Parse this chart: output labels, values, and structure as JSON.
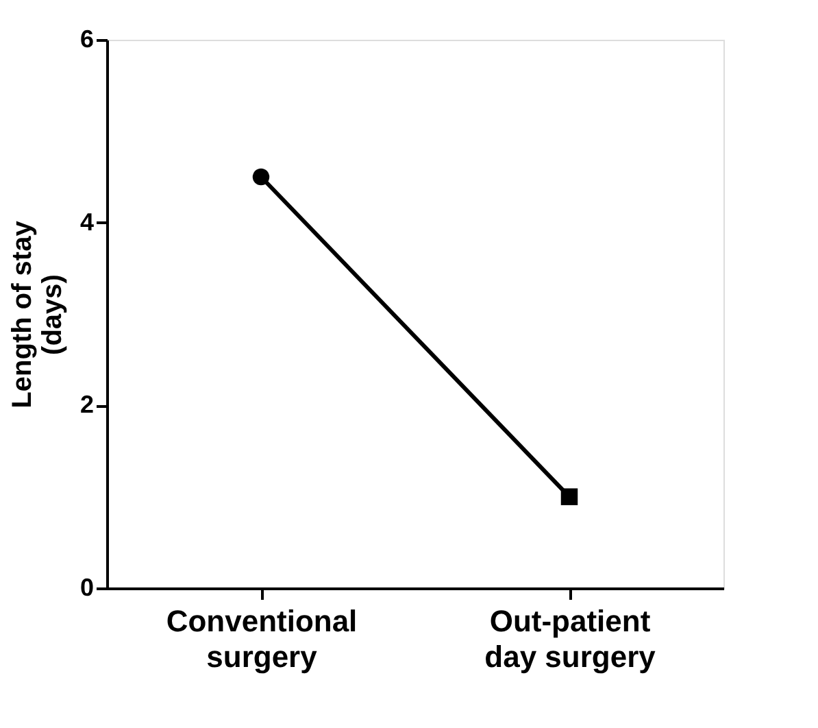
{
  "chart_data": {
    "type": "line",
    "ylabel": "Length of stay\n(days)",
    "categories": [
      "Conventional\nsurgery",
      "Out-patient\nday surgery"
    ],
    "series": [
      {
        "color": "#000000",
        "values": [
          4.5,
          1.0
        ],
        "marker": "none"
      },
      {
        "type": "scatter",
        "color": "#000000",
        "values": [
          4.5,
          null
        ],
        "marker": "circle"
      },
      {
        "type": "scatter",
        "color": "#000000",
        "values": [
          null,
          1.0
        ],
        "marker": "square"
      }
    ],
    "ylim": [
      0,
      6
    ],
    "yticks": [
      0,
      2,
      4,
      6
    ],
    "grid": false
  }
}
